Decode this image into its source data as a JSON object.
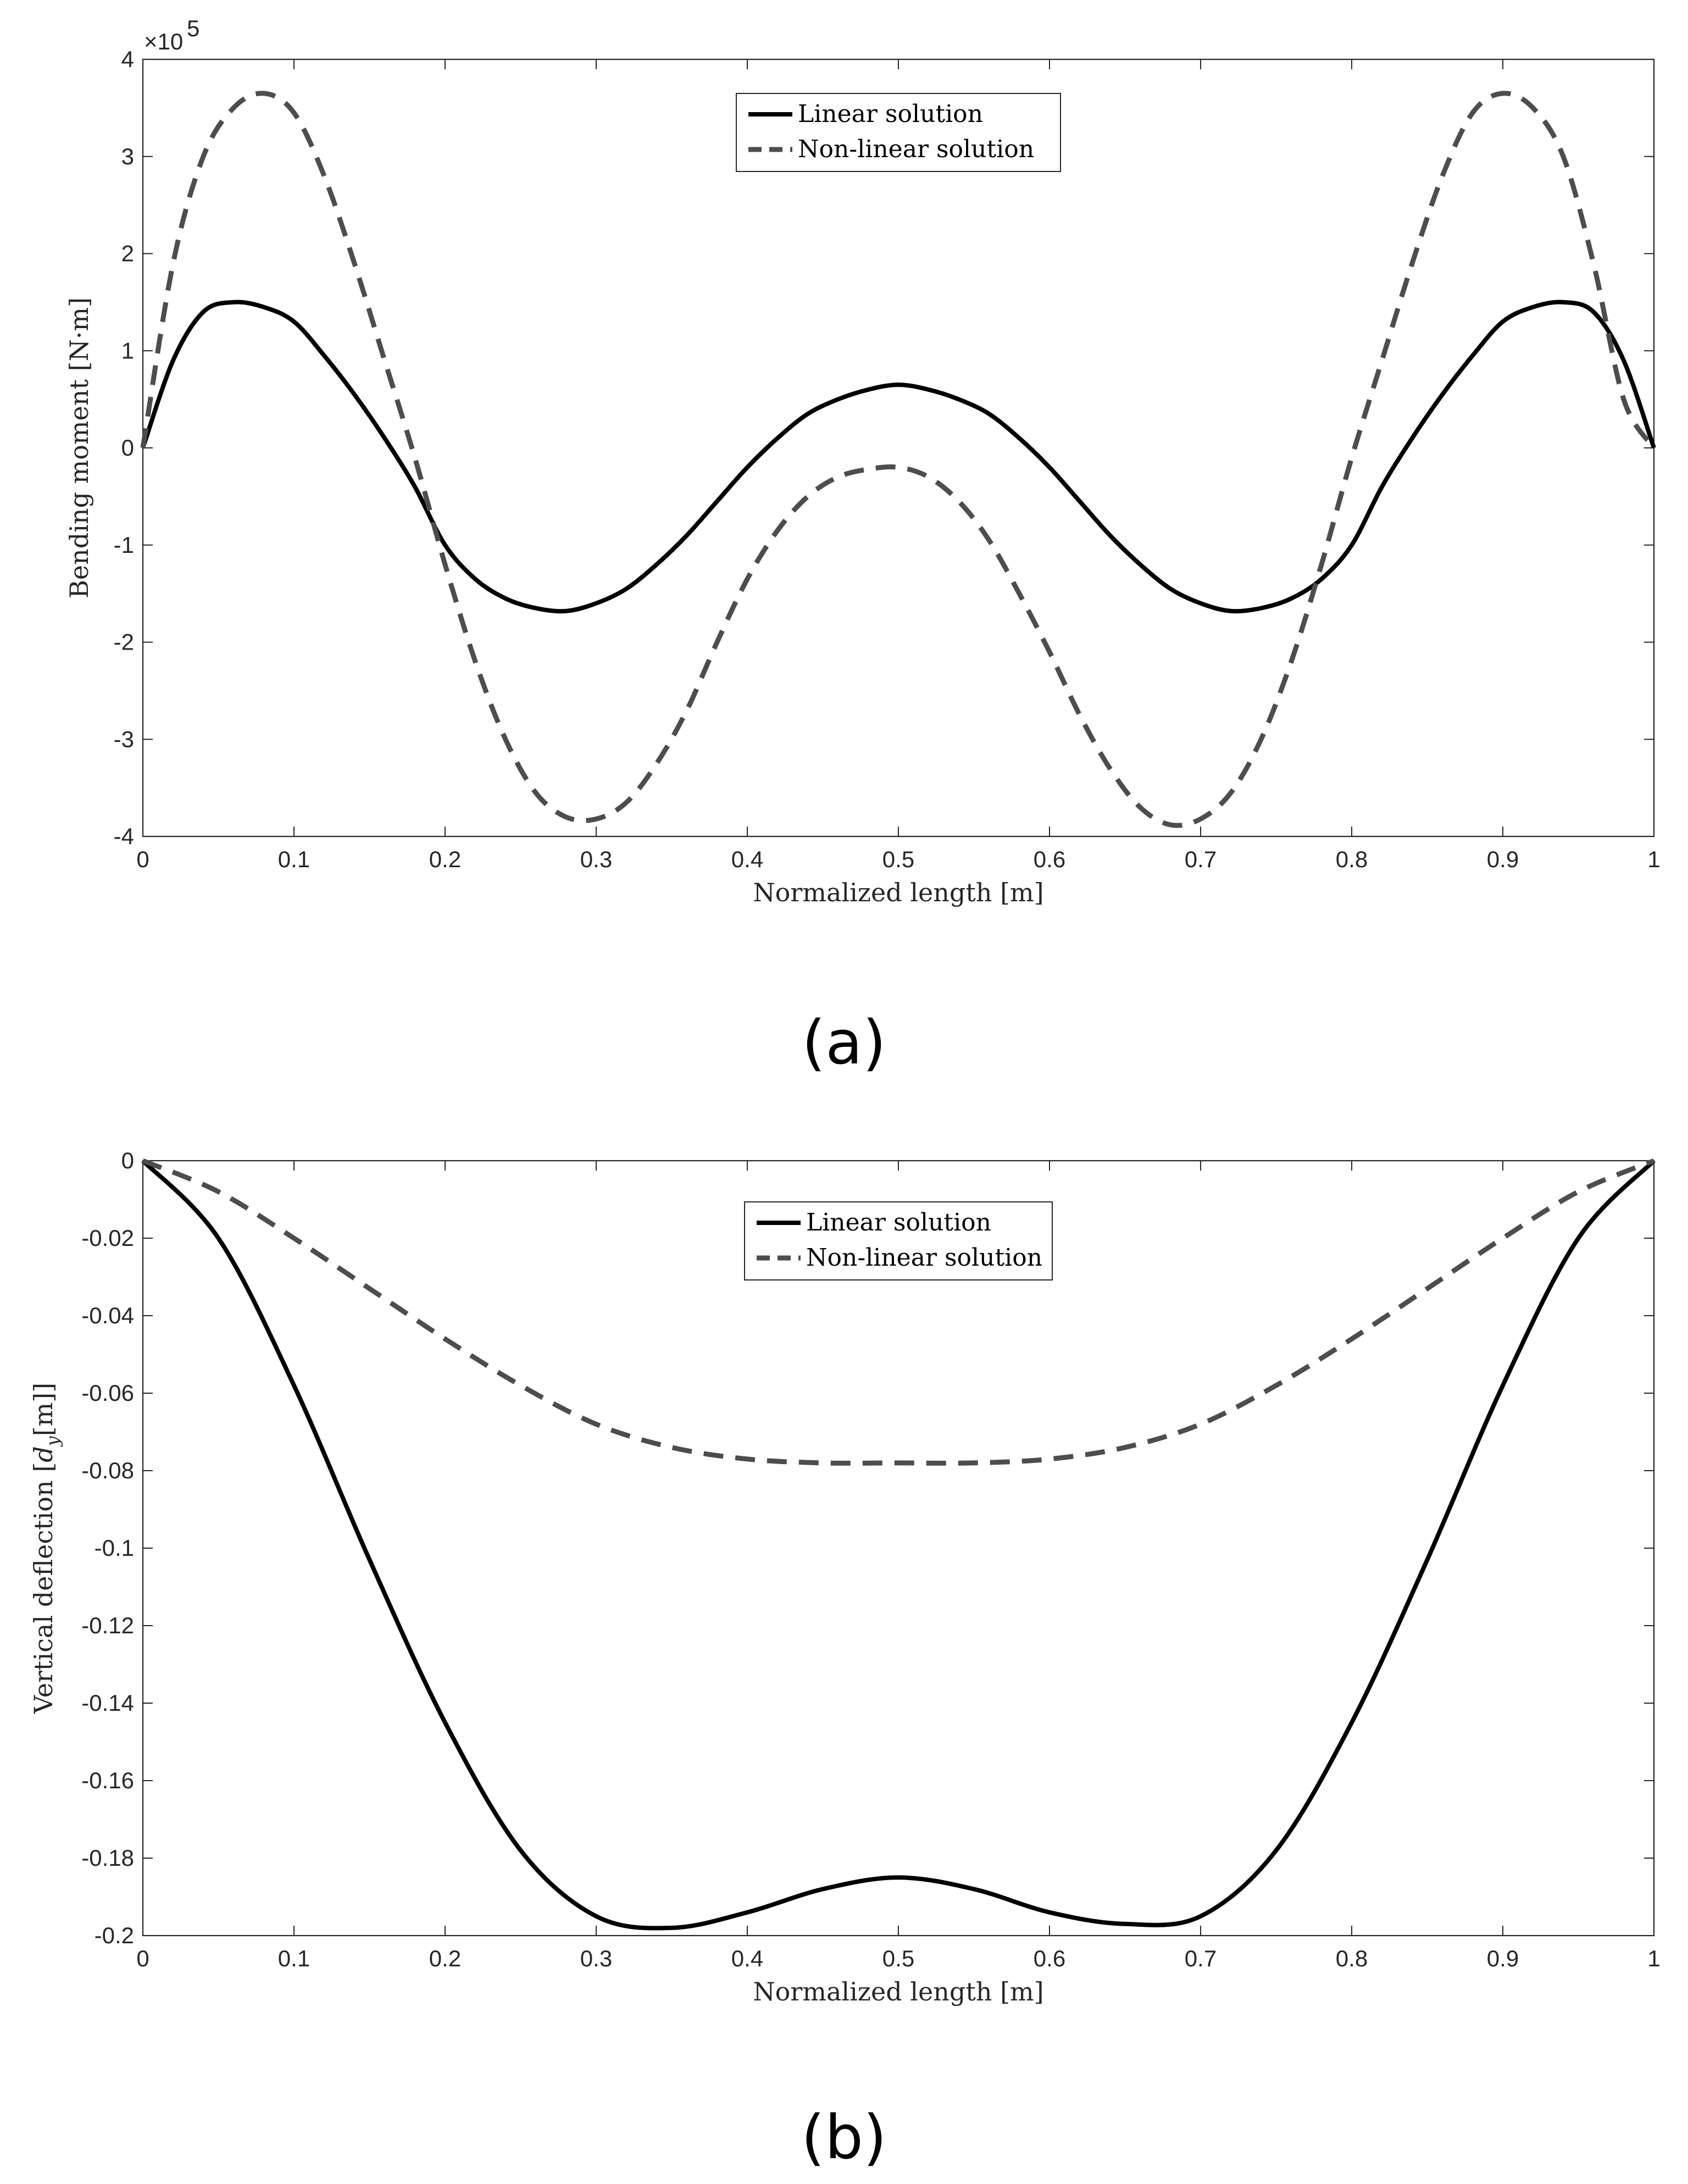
{
  "chart_data": [
    {
      "type": "line",
      "panel_label": "(a)",
      "title": "",
      "xlabel": "Normalized length [m]",
      "ylabel": "Bending moment [N·m]",
      "y_multiplier_label": "×10",
      "y_multiplier_exponent": "5",
      "xlim": [
        0,
        1
      ],
      "ylim": [
        -4,
        4
      ],
      "x_ticks": [
        0,
        0.1,
        0.2,
        0.3,
        0.4,
        0.5,
        0.6,
        0.7,
        0.8,
        0.9,
        1
      ],
      "x_tick_labels": [
        "0",
        "0.1",
        "0.2",
        "0.3",
        "0.4",
        "0.5",
        "0.6",
        "0.7",
        "0.8",
        "0.9",
        "1"
      ],
      "y_ticks": [
        -4,
        -3,
        -2,
        -1,
        0,
        1,
        2,
        3,
        4
      ],
      "y_tick_labels": [
        "-4",
        "-3",
        "-2",
        "-1",
        "0",
        "1",
        "2",
        "3",
        "4"
      ],
      "grid": false,
      "legend_position": "top-center",
      "series": [
        {
          "name": "Linear solution",
          "style": "solid",
          "color": "#000000",
          "x": [
            0,
            0.02,
            0.04,
            0.06,
            0.08,
            0.1,
            0.12,
            0.14,
            0.16,
            0.18,
            0.2,
            0.22,
            0.24,
            0.26,
            0.28,
            0.3,
            0.32,
            0.34,
            0.36,
            0.38,
            0.4,
            0.42,
            0.44,
            0.46,
            0.48,
            0.5,
            0.52,
            0.54,
            0.56,
            0.58,
            0.6,
            0.62,
            0.64,
            0.66,
            0.68,
            0.7,
            0.72,
            0.74,
            0.76,
            0.78,
            0.8,
            0.82,
            0.84,
            0.86,
            0.88,
            0.9,
            0.92,
            0.94,
            0.96,
            0.98,
            1.0
          ],
          "y": [
            0,
            0.9,
            1.4,
            1.5,
            1.45,
            1.3,
            0.95,
            0.55,
            0.1,
            -0.4,
            -1.0,
            -1.35,
            -1.55,
            -1.65,
            -1.68,
            -1.6,
            -1.45,
            -1.2,
            -0.9,
            -0.55,
            -0.2,
            0.1,
            0.35,
            0.5,
            0.6,
            0.65,
            0.6,
            0.5,
            0.35,
            0.1,
            -0.2,
            -0.55,
            -0.9,
            -1.2,
            -1.45,
            -1.6,
            -1.68,
            -1.65,
            -1.55,
            -1.35,
            -1.0,
            -0.4,
            0.1,
            0.55,
            0.95,
            1.3,
            1.45,
            1.5,
            1.4,
            0.9,
            0
          ]
        },
        {
          "name": "Non-linear solution",
          "style": "dashed",
          "color": "#4d4d4d",
          "x": [
            0,
            0.02,
            0.04,
            0.06,
            0.08,
            0.1,
            0.12,
            0.14,
            0.16,
            0.18,
            0.2,
            0.22,
            0.24,
            0.26,
            0.28,
            0.3,
            0.32,
            0.34,
            0.36,
            0.38,
            0.4,
            0.42,
            0.44,
            0.46,
            0.48,
            0.5,
            0.52,
            0.54,
            0.56,
            0.58,
            0.6,
            0.62,
            0.64,
            0.66,
            0.68,
            0.7,
            0.72,
            0.74,
            0.76,
            0.78,
            0.8,
            0.82,
            0.84,
            0.86,
            0.88,
            0.9,
            0.92,
            0.94,
            0.96,
            0.98,
            1.0
          ],
          "y": [
            0,
            1.9,
            3.0,
            3.5,
            3.65,
            3.45,
            2.8,
            1.9,
            0.9,
            -0.1,
            -1.2,
            -2.2,
            -3.0,
            -3.55,
            -3.8,
            -3.82,
            -3.65,
            -3.25,
            -2.7,
            -2.0,
            -1.35,
            -0.85,
            -0.5,
            -0.3,
            -0.22,
            -0.2,
            -0.3,
            -0.55,
            -0.95,
            -1.5,
            -2.1,
            -2.75,
            -3.3,
            -3.7,
            -3.88,
            -3.82,
            -3.55,
            -3.0,
            -2.2,
            -1.2,
            -0.1,
            0.9,
            1.9,
            2.8,
            3.45,
            3.65,
            3.5,
            3.0,
            1.9,
            0.5,
            0
          ]
        }
      ]
    },
    {
      "type": "line",
      "panel_label": "(b)",
      "title": "",
      "xlabel": "Normalized length [m]",
      "ylabel": "Vertical deflection [d_y [m]]",
      "ylabel_main": "Vertical deflection [",
      "ylabel_var": "d",
      "ylabel_sub": "y",
      "ylabel_tail": "[m]]",
      "xlim": [
        0,
        1
      ],
      "ylim": [
        -0.2,
        0
      ],
      "x_ticks": [
        0,
        0.1,
        0.2,
        0.3,
        0.4,
        0.5,
        0.6,
        0.7,
        0.8,
        0.9,
        1
      ],
      "x_tick_labels": [
        "0",
        "0.1",
        "0.2",
        "0.3",
        "0.4",
        "0.5",
        "0.6",
        "0.7",
        "0.8",
        "0.9",
        "1"
      ],
      "y_ticks": [
        -0.2,
        -0.18,
        -0.16,
        -0.14,
        -0.12,
        -0.1,
        -0.08,
        -0.06,
        -0.04,
        -0.02,
        0
      ],
      "y_tick_labels": [
        "-0.2",
        "-0.18",
        "-0.16",
        "-0.14",
        "-0.12",
        "-0.1",
        "-0.08",
        "-0.06",
        "-0.04",
        "-0.02",
        "0"
      ],
      "grid": false,
      "legend_position": "top-center",
      "series": [
        {
          "name": "Linear solution",
          "style": "solid",
          "color": "#000000",
          "x": [
            0,
            0.05,
            0.1,
            0.15,
            0.2,
            0.25,
            0.3,
            0.35,
            0.4,
            0.45,
            0.5,
            0.55,
            0.6,
            0.65,
            0.7,
            0.75,
            0.8,
            0.85,
            0.9,
            0.95,
            1.0
          ],
          "y": [
            0,
            -0.02,
            -0.058,
            -0.103,
            -0.145,
            -0.178,
            -0.195,
            -0.198,
            -0.194,
            -0.188,
            -0.185,
            -0.188,
            -0.194,
            -0.197,
            -0.195,
            -0.178,
            -0.145,
            -0.103,
            -0.058,
            -0.02,
            0
          ]
        },
        {
          "name": "Non-linear solution",
          "style": "dashed",
          "color": "#4d4d4d",
          "x": [
            0,
            0.05,
            0.1,
            0.15,
            0.2,
            0.25,
            0.3,
            0.35,
            0.4,
            0.45,
            0.5,
            0.55,
            0.6,
            0.65,
            0.7,
            0.75,
            0.8,
            0.85,
            0.9,
            0.95,
            1.0
          ],
          "y": [
            0,
            -0.008,
            -0.02,
            -0.033,
            -0.046,
            -0.058,
            -0.068,
            -0.074,
            -0.077,
            -0.078,
            -0.078,
            -0.078,
            -0.077,
            -0.074,
            -0.068,
            -0.058,
            -0.046,
            -0.033,
            -0.02,
            -0.008,
            0
          ]
        }
      ]
    }
  ]
}
